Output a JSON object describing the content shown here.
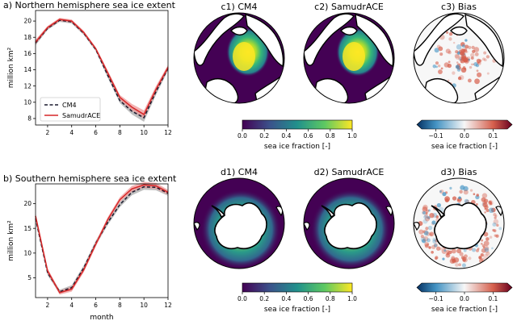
{
  "colors": {
    "cm4": "#1a1a2e",
    "samudrace": "#d62728",
    "samudrace_band": "#ef9a9a",
    "cm4_band": "#a9a9a9",
    "land": "#ffffff",
    "ice_low": "#440154",
    "ice_high": "#fde725",
    "bias_neg": "#2166ac",
    "bias_pos": "#b2182b"
  },
  "chart_data": [
    {
      "id": "a",
      "type": "line",
      "title": "a) Northern hemisphere sea ice extent",
      "xlabel": "",
      "ylabel": "million km²",
      "xlim": [
        1,
        12
      ],
      "ylim": [
        7.2,
        21.3
      ],
      "xticks": [
        2,
        4,
        6,
        8,
        10,
        12
      ],
      "yticks": [
        8,
        10,
        12,
        14,
        16,
        18,
        20
      ],
      "grid": false,
      "legend_position": "lower-left",
      "x": [
        1,
        2,
        3,
        4,
        5,
        6,
        7,
        8,
        9,
        10,
        11,
        12
      ],
      "series": [
        {
          "name": "CM4",
          "style": "dashed",
          "values": [
            17.3,
            19.1,
            20.1,
            19.9,
            18.5,
            16.5,
            13.3,
            10.2,
            8.9,
            8.1,
            11.3,
            14.2
          ],
          "band": [
            0.3,
            0.2,
            0.2,
            0.2,
            0.2,
            0.2,
            0.3,
            0.3,
            0.4,
            0.5,
            0.4,
            0.3
          ]
        },
        {
          "name": "SamudrACE",
          "style": "solid",
          "values": [
            17.4,
            19.2,
            20.2,
            20.0,
            18.6,
            16.6,
            13.6,
            10.6,
            9.4,
            8.5,
            11.6,
            14.3
          ],
          "band": [
            0.3,
            0.2,
            0.2,
            0.2,
            0.2,
            0.2,
            0.3,
            0.3,
            0.4,
            0.5,
            0.4,
            0.3
          ]
        }
      ]
    },
    {
      "id": "b",
      "type": "line",
      "title": "b) Southern hemisphere sea ice extent",
      "xlabel": "month",
      "ylabel": "million km²",
      "xlim": [
        1,
        12
      ],
      "ylim": [
        1.0,
        24.0
      ],
      "xticks": [
        2,
        4,
        6,
        8,
        10,
        12
      ],
      "yticks": [
        5,
        10,
        15,
        20
      ],
      "grid": false,
      "x": [
        1,
        2,
        3,
        4,
        5,
        6,
        7,
        8,
        9,
        10,
        11,
        12
      ],
      "series": [
        {
          "name": "CM4",
          "style": "dashed",
          "values": [
            17.0,
            6.0,
            2.2,
            3.0,
            7.0,
            12.0,
            16.2,
            19.8,
            22.3,
            23.4,
            23.3,
            22.1
          ],
          "band": [
            0.6,
            0.5,
            0.4,
            0.5,
            0.5,
            0.5,
            0.5,
            0.5,
            0.6,
            0.6,
            0.6,
            0.5
          ]
        },
        {
          "name": "SamudrACE",
          "style": "solid",
          "values": [
            17.5,
            6.4,
            2.0,
            2.7,
            6.6,
            11.8,
            16.8,
            20.8,
            23.0,
            23.8,
            23.6,
            22.3
          ],
          "band": [
            0.6,
            0.5,
            0.4,
            0.5,
            0.5,
            0.5,
            0.5,
            0.5,
            0.6,
            0.6,
            0.6,
            0.5
          ]
        }
      ]
    }
  ],
  "maps": {
    "north": [
      {
        "title": "c1) CM4",
        "kind": "field"
      },
      {
        "title": "c2) SamudrACE",
        "kind": "field"
      },
      {
        "title": "c3) Bias",
        "kind": "bias"
      }
    ],
    "south": [
      {
        "title": "d1) CM4",
        "kind": "field"
      },
      {
        "title": "d2) SamudrACE",
        "kind": "field"
      },
      {
        "title": "d3) Bias",
        "kind": "bias"
      }
    ]
  },
  "colorbars": {
    "field": {
      "label": "sea ice fraction [-]",
      "ticks": [
        "0.0",
        "0.2",
        "0.4",
        "0.6",
        "0.8",
        "1.0"
      ],
      "range": [
        0,
        1
      ]
    },
    "bias": {
      "label": "sea ice fraction [-]",
      "ticks": [
        "−0.1",
        "0.0",
        "0.1"
      ],
      "range": [
        -0.15,
        0.15
      ]
    }
  }
}
